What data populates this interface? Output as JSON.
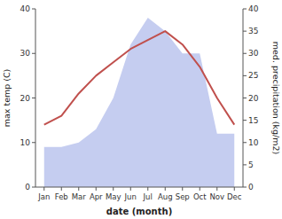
{
  "chart_data": {
    "type": "line",
    "categories": [
      "Jan",
      "Feb",
      "Mar",
      "Apr",
      "May",
      "Jun",
      "Jul",
      "Aug",
      "Sep",
      "Oct",
      "Nov",
      "Dec"
    ],
    "series": [
      {
        "type": "area",
        "axis": "y2",
        "color": "#c5cdf0",
        "values": [
          9,
          9,
          10,
          13,
          20,
          32,
          38,
          35,
          30,
          30,
          12,
          12
        ]
      },
      {
        "type": "line",
        "color": "#c0504d",
        "values": [
          14,
          16,
          21,
          25,
          28,
          31,
          33,
          35,
          32,
          27,
          20,
          14
        ]
      }
    ],
    "x_label": "date (month)",
    "y_label": "max temp (C)",
    "y2_label": "med. precipitation (kg/m2)",
    "ylim": [
      0,
      40
    ],
    "yticks": [
      0,
      10,
      20,
      30,
      40
    ],
    "y2lim": [
      0,
      40
    ],
    "y2ticks": [
      0,
      5,
      10,
      15,
      20,
      25,
      30,
      35,
      40
    ],
    "grid": false
  }
}
